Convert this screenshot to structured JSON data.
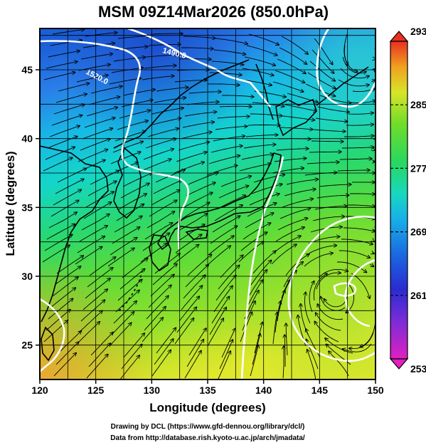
{
  "title": "MSM 09Z14Mar2026 (850.0hPa)",
  "chart_data": {
    "type": "heatmap",
    "xlabel": "Longitude (degrees)",
    "ylabel": "Latitude  (degrees)",
    "xlim": [
      120,
      150
    ],
    "ylim": [
      22.5,
      48
    ],
    "x_ticks": [
      "120",
      "125",
      "130",
      "135",
      "140",
      "145",
      "150"
    ],
    "y_ticks": [
      "25",
      "30",
      "35",
      "40",
      "45"
    ],
    "colorbar": {
      "min": 253,
      "max": 293,
      "tick_labels": [
        "293",
        "285",
        "277",
        "269",
        "261",
        "253"
      ]
    },
    "contour_labels": [
      "1490.0",
      "1520.0"
    ],
    "grid": true
  },
  "credits": {
    "line1": "Drawing by DCL (https://www.gfd-dennou.org/library/dcl/)",
    "line2": "Data from http://database.rish.kyoto-u.ac.jp/arch/jmadata/"
  }
}
